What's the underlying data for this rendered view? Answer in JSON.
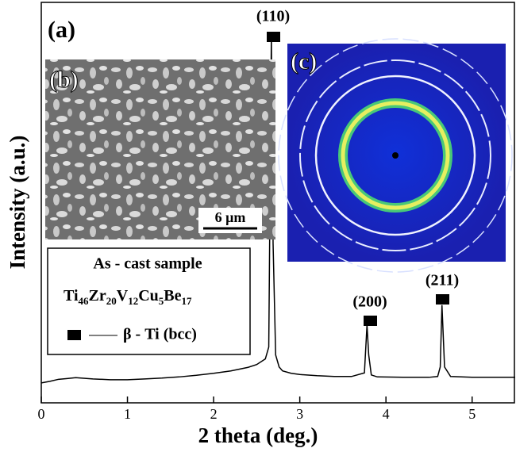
{
  "chart_data": {
    "type": "line",
    "title_label": "(a)",
    "x_label": "2 theta (deg.)",
    "y_label": "Intensity (a.u.)",
    "xlim": [
      0,
      5.5
    ],
    "xticks": [
      0,
      1,
      2,
      3,
      4,
      5
    ],
    "ylim": [
      0,
      100
    ],
    "color": "#000000",
    "x": [
      0,
      0.1,
      0.2,
      0.3,
      0.4,
      0.6,
      0.8,
      1.0,
      1.2,
      1.4,
      1.6,
      1.8,
      2.0,
      2.2,
      2.4,
      2.5,
      2.6,
      2.64,
      2.67,
      2.69,
      2.72,
      2.76,
      2.8,
      2.9,
      3.0,
      3.2,
      3.4,
      3.6,
      3.75,
      3.78,
      3.8,
      3.83,
      3.9,
      4.2,
      4.5,
      4.6,
      4.63,
      4.65,
      4.68,
      4.75,
      5.0,
      5.5
    ],
    "values": [
      5.0,
      5.4,
      5.9,
      6.1,
      6.3,
      6.0,
      5.8,
      5.8,
      6.0,
      6.2,
      6.5,
      6.9,
      7.4,
      8.0,
      8.9,
      9.6,
      11.0,
      14.0,
      92.0,
      40.0,
      12.0,
      9.0,
      8.0,
      7.4,
      7.1,
      6.8,
      6.6,
      6.6,
      7.5,
      19.5,
      12.0,
      7.0,
      6.5,
      6.4,
      6.4,
      6.6,
      9.0,
      24.5,
      9.0,
      6.6,
      6.4,
      6.4
    ],
    "peaks": [
      "(110)",
      "(200)",
      "(211)"
    ],
    "inset_b": {
      "label": "(b)",
      "scale_bar": "6 μm"
    },
    "inset_c": {
      "label": "(c)"
    },
    "legend": {
      "sample": "As - cast sample",
      "formula": [
        [
          "Ti",
          "46"
        ],
        [
          "Zr",
          "20"
        ],
        [
          "V",
          "12"
        ],
        [
          "Cu",
          "5"
        ],
        [
          "Be",
          "17"
        ]
      ],
      "phase": "β - Ti (bcc)"
    }
  }
}
